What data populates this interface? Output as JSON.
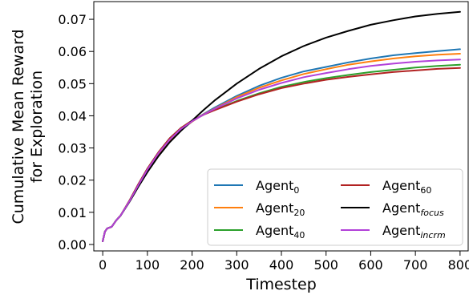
{
  "chart_data": {
    "type": "line",
    "title": "",
    "xlabel": "Timestep",
    "ylabel_lines": [
      "Cumulative Mean Reward",
      "for Exploration"
    ],
    "xlim": [
      -20,
      820
    ],
    "ylim": [
      -0.002,
      0.0755
    ],
    "xticks": [
      0,
      100,
      200,
      300,
      400,
      500,
      600,
      700,
      800
    ],
    "yticks": [
      0.0,
      0.01,
      0.02,
      0.03,
      0.04,
      0.05,
      0.06,
      0.07
    ],
    "ytick_labels": [
      "0.00",
      "0.01",
      "0.02",
      "0.03",
      "0.04",
      "0.05",
      "0.06",
      "0.07"
    ],
    "grid": false,
    "legend_position": "lower-right",
    "x": [
      0,
      5,
      10,
      20,
      30,
      40,
      60,
      80,
      100,
      125,
      150,
      175,
      200,
      225,
      250,
      300,
      350,
      400,
      450,
      500,
      550,
      600,
      650,
      700,
      750,
      800
    ],
    "series": [
      {
        "name": "Agent",
        "name_sub": "0",
        "color": "#1f77b4",
        "values": [
          0.001,
          0.004,
          0.005,
          0.0055,
          0.0075,
          0.009,
          0.0135,
          0.0185,
          0.023,
          0.028,
          0.032,
          0.0355,
          0.0382,
          0.0405,
          0.0425,
          0.0462,
          0.0493,
          0.0518,
          0.0538,
          0.0552,
          0.0566,
          0.0578,
          0.0588,
          0.0595,
          0.0601,
          0.0607
        ]
      },
      {
        "name": "Agent",
        "name_sub": "20",
        "color": "#ff7f0e",
        "values": [
          0.001,
          0.004,
          0.005,
          0.0055,
          0.0075,
          0.009,
          0.0135,
          0.0185,
          0.0232,
          0.0282,
          0.0324,
          0.0357,
          0.0382,
          0.0404,
          0.0422,
          0.0458,
          0.0487,
          0.051,
          0.053,
          0.0545,
          0.0559,
          0.0569,
          0.0578,
          0.0585,
          0.059,
          0.0593
        ]
      },
      {
        "name": "Agent",
        "name_sub": "40",
        "color": "#2ca02c",
        "values": [
          0.001,
          0.004,
          0.005,
          0.0055,
          0.0075,
          0.009,
          0.0137,
          0.0188,
          0.0236,
          0.0287,
          0.033,
          0.0362,
          0.0385,
          0.0403,
          0.0418,
          0.0446,
          0.047,
          0.049,
          0.0505,
          0.0517,
          0.0527,
          0.0536,
          0.0543,
          0.055,
          0.0555,
          0.0559
        ]
      },
      {
        "name": "Agent",
        "name_sub": "60",
        "color": "#b22222",
        "values": [
          0.001,
          0.004,
          0.005,
          0.0055,
          0.0075,
          0.009,
          0.0137,
          0.0188,
          0.0236,
          0.0287,
          0.033,
          0.0362,
          0.0385,
          0.0403,
          0.0417,
          0.0444,
          0.0467,
          0.0486,
          0.05,
          0.0512,
          0.0521,
          0.0529,
          0.0536,
          0.0541,
          0.0546,
          0.0549
        ]
      },
      {
        "name": "Agent",
        "name_sub": "focus",
        "color": "#000000",
        "values": [
          0.001,
          0.004,
          0.005,
          0.0055,
          0.0075,
          0.009,
          0.0133,
          0.018,
          0.0225,
          0.0275,
          0.0318,
          0.0353,
          0.0385,
          0.0417,
          0.0447,
          0.05,
          0.0546,
          0.0585,
          0.0617,
          0.0643,
          0.0664,
          0.0683,
          0.0697,
          0.0709,
          0.0717,
          0.0723
        ]
      },
      {
        "name": "Agent",
        "name_sub": "incrm",
        "color": "#b241d9",
        "values": [
          0.001,
          0.004,
          0.005,
          0.0055,
          0.0075,
          0.009,
          0.0135,
          0.0185,
          0.0233,
          0.0284,
          0.0326,
          0.0359,
          0.0383,
          0.0403,
          0.0421,
          0.0454,
          0.0481,
          0.0502,
          0.052,
          0.0533,
          0.0545,
          0.0555,
          0.0562,
          0.0568,
          0.0572,
          0.0575
        ]
      }
    ]
  }
}
